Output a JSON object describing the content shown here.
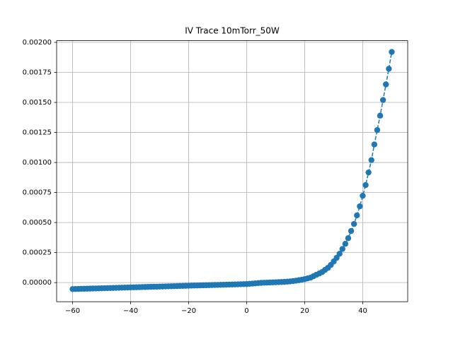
{
  "chart_data": {
    "type": "line",
    "title": "IV Trace 10mTorr_50W",
    "x": [
      -60,
      -59,
      -58,
      -57,
      -56,
      -55,
      -54,
      -53,
      -52,
      -51,
      -50,
      -49,
      -48,
      -47,
      -46,
      -45,
      -44,
      -43,
      -42,
      -41,
      -40,
      -39,
      -38,
      -37,
      -36,
      -35,
      -34,
      -33,
      -32,
      -31,
      -30,
      -29,
      -28,
      -27,
      -26,
      -25,
      -24,
      -23,
      -22,
      -21,
      -20,
      -19,
      -18,
      -17,
      -16,
      -15,
      -14,
      -13,
      -12,
      -11,
      -10,
      -9,
      -8,
      -7,
      -6,
      -5,
      -4,
      -3,
      -2,
      -1,
      0,
      1,
      2,
      3,
      4,
      5,
      6,
      7,
      8,
      9,
      10,
      11,
      12,
      13,
      14,
      15,
      16,
      17,
      18,
      19,
      20,
      21,
      22,
      23,
      24,
      25,
      26,
      27,
      28,
      29,
      30,
      31,
      32,
      33,
      34,
      35,
      36,
      37,
      38,
      39,
      40,
      41,
      42,
      43,
      44,
      45,
      46,
      47,
      48,
      49,
      50
    ],
    "series": [
      {
        "color": "#1f77b4",
        "values": [
          -5.4e-05,
          -5.33e-05,
          -5.26e-05,
          -5.19e-05,
          -5.12e-05,
          -5.05e-05,
          -4.98e-05,
          -4.91e-05,
          -4.84e-05,
          -4.77e-05,
          -4.7e-05,
          -4.63e-05,
          -4.56e-05,
          -4.49e-05,
          -4.42e-05,
          -4.35e-05,
          -4.28e-05,
          -4.21e-05,
          -4.14e-05,
          -4.07e-05,
          -4e-05,
          -3.93e-05,
          -3.86e-05,
          -3.79e-05,
          -3.72e-05,
          -3.65e-05,
          -3.58e-05,
          -3.51e-05,
          -3.44e-05,
          -3.37e-05,
          -3.3e-05,
          -3.23e-05,
          -3.16e-05,
          -3.09e-05,
          -3.02e-05,
          -2.95e-05,
          -2.88e-05,
          -2.81e-05,
          -2.74e-05,
          -2.67e-05,
          -2.6e-05,
          -2.53e-05,
          -2.46e-05,
          -2.39e-05,
          -2.32e-05,
          -2.25e-05,
          -2.18e-05,
          -2.11e-05,
          -2.04e-05,
          -1.97e-05,
          -1.9e-05,
          -1.83e-05,
          -1.76e-05,
          -1.69e-05,
          -1.62e-05,
          -1.55e-05,
          -1.48e-05,
          -1.41e-05,
          -1.34e-05,
          -1.27e-05,
          -1.2e-05,
          -1e-05,
          -8e-06,
          -6e-06,
          -4e-06,
          -2e-06,
          -1e-06,
          0,
          1e-06,
          2e-06,
          3e-06,
          4e-06,
          5e-06,
          6e-06,
          8e-06,
          1e-05,
          1.3e-05,
          1.6e-05,
          2e-05,
          2.4e-05,
          2.9e-05,
          3.5e-05,
          4.1e-05,
          5.3e-05,
          6.5e-05,
          7.6e-05,
          8.8e-05,
          0.000106,
          0.000123,
          0.000147,
          0.000176,
          0.000206,
          0.00024,
          0.00028,
          0.000323,
          0.00037,
          0.00043,
          0.000488,
          0.00056,
          0.000635,
          0.000723,
          0.000812,
          0.000917,
          0.00102,
          0.00115,
          0.00127,
          0.00139,
          0.00152,
          0.00165,
          0.00178,
          0.00192
        ]
      }
    ],
    "xlim": [
      -65.5,
      55.5
    ],
    "xticks": [
      {
        "value": -60,
        "label": "−60"
      },
      {
        "value": -40,
        "label": "−40"
      },
      {
        "value": -20,
        "label": "−20"
      },
      0,
      20,
      40
    ],
    "ylim": [
      -0.000159,
      0.002014
    ],
    "yticks": [
      {
        "value": 0,
        "label": "0.00000"
      },
      {
        "value": 0.00025,
        "label": "0.00025"
      },
      {
        "value": 0.0005,
        "label": "0.00050"
      },
      {
        "value": 0.00075,
        "label": "0.00075"
      },
      {
        "value": 0.001,
        "label": "0.00100"
      },
      {
        "value": 0.00125,
        "label": "0.00125"
      },
      {
        "value": 0.0015,
        "label": "0.00150"
      },
      {
        "value": 0.00175,
        "label": "0.00175"
      },
      {
        "value": 0.002,
        "label": "0.00200"
      }
    ],
    "grid": true
  }
}
